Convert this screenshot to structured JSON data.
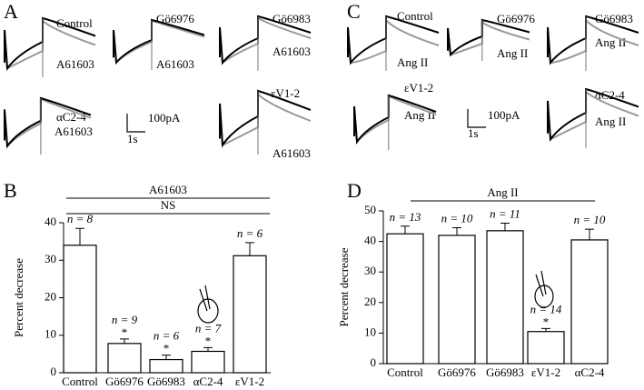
{
  "panels": {
    "A": {
      "label": "A",
      "traces": [
        {
          "drug": "Control",
          "agonist": "A61603"
        },
        {
          "drug": "Gö6976",
          "agonist": "A61603"
        },
        {
          "drug": "Gö6983",
          "agonist": "A61603"
        },
        {
          "drug": "αC2-4",
          "agonist": "A61603"
        },
        {
          "drug": "εV1-2",
          "agonist": "A61603"
        }
      ],
      "scale": {
        "current": "100pA",
        "time": "1s"
      }
    },
    "C": {
      "label": "C",
      "traces": [
        {
          "drug": "Control",
          "agonist": "Ang II"
        },
        {
          "drug": "Gö6976",
          "agonist": "Ang II"
        },
        {
          "drug": "Gö6983",
          "agonist": "Ang II"
        },
        {
          "drug": "εV1-2",
          "agonist": "Ang II"
        },
        {
          "drug": "αC2-4",
          "agonist": "Ang II"
        }
      ],
      "scale": {
        "current": "100pA",
        "time": "1s"
      }
    }
  },
  "chart_data": [
    {
      "type": "bar",
      "label": "B",
      "y_label": "Percent decrease",
      "bracket_labels": [
        "A61603",
        "NS"
      ],
      "categories": [
        "Control",
        "Gö6976",
        "Gö6983",
        "αC2-4",
        "εV1-2"
      ],
      "values": [
        34,
        7.8,
        3.5,
        5.7,
        31.2
      ],
      "errors": [
        4.5,
        1.2,
        1.2,
        1,
        3.5
      ],
      "annotations": [
        "n = 8",
        "n = 9",
        "n = 6",
        "n = 7",
        "n = 6"
      ],
      "significance_marker": "*",
      "significant": [
        false,
        true,
        true,
        true,
        false
      ],
      "color": "#ffffff",
      "ylim": [
        0,
        40
      ],
      "yticks": [
        0,
        10,
        20,
        30,
        40
      ]
    },
    {
      "type": "bar",
      "label": "D",
      "y_label": "Percent decrease",
      "bracket_labels": [
        "Ang II"
      ],
      "categories": [
        "Control",
        "Gö6976",
        "Gö6983",
        "εV1-2",
        "αC2-4"
      ],
      "values": [
        42.5,
        42,
        43.5,
        10.5,
        40.5
      ],
      "errors": [
        2.5,
        2.5,
        2.5,
        1,
        3.5
      ],
      "annotations": [
        "n = 13",
        "n = 10",
        "n = 11",
        "n = 14",
        "n = 10"
      ],
      "significance_marker": "*",
      "significant": [
        false,
        false,
        false,
        true,
        false
      ],
      "color": "#ffffff",
      "ylim": [
        0,
        50
      ],
      "yticks": [
        0,
        10,
        20,
        30,
        40,
        50
      ]
    }
  ]
}
